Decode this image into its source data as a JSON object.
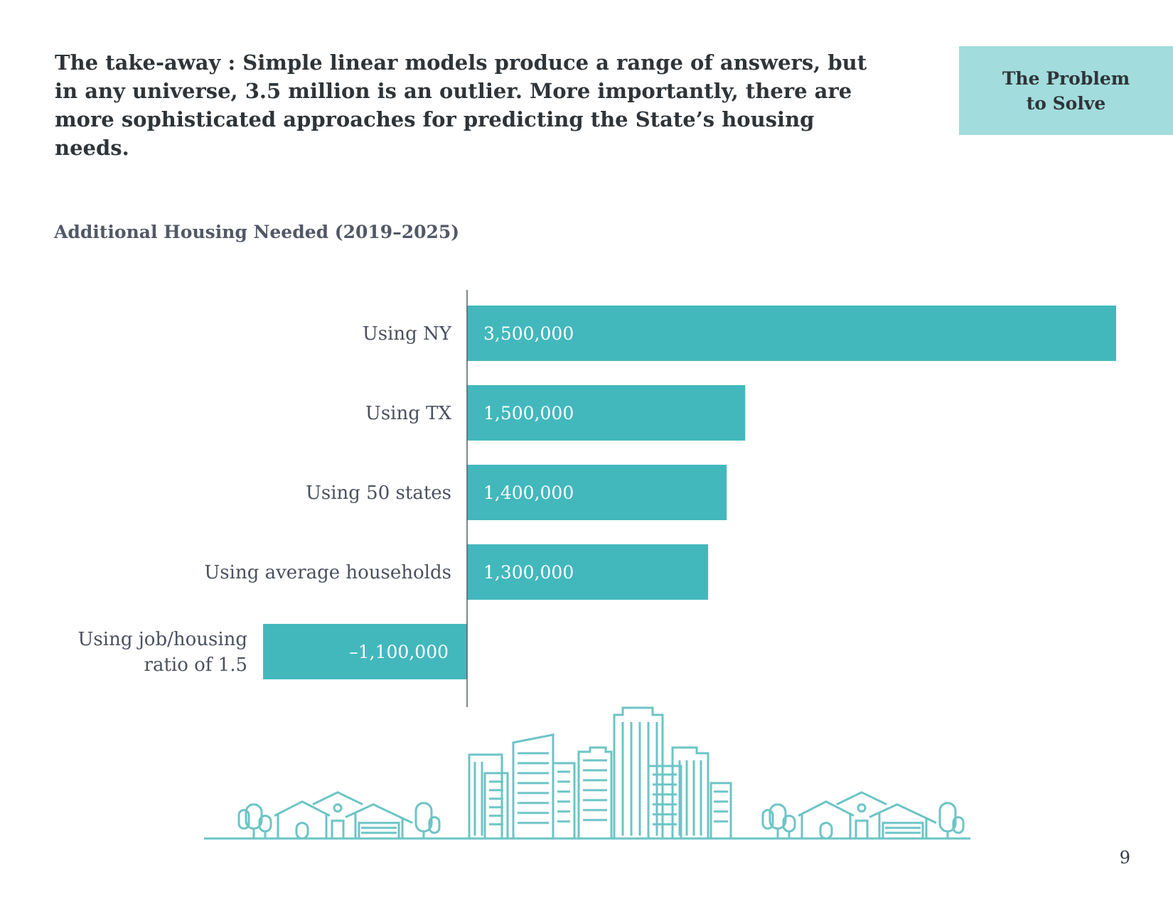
{
  "slide": {
    "takeaway": "The take-away : Simple linear models produce a range of answers, but in any universe, 3.5 million is an outlier. More importantly, there are more sophisticated approaches for predicting the State’s housing needs.",
    "section_label": "The Problem to Solve",
    "page_number": "9"
  },
  "colors": {
    "bar": "#42b8bd",
    "axis": "#555b66",
    "label_text": "#4a5060",
    "bar_text": "#ffffff",
    "section_bg": "#a2dcdc",
    "illustration": "#6cc4c6"
  },
  "chart_data": {
    "type": "bar",
    "orientation": "horizontal",
    "title": "Additional Housing Needed (2019–2025)",
    "categories": [
      [
        "Using NY"
      ],
      [
        "Using TX"
      ],
      [
        "Using 50 states"
      ],
      [
        "Using average households"
      ],
      [
        "Using job/housing",
        "ratio of 1.5"
      ]
    ],
    "values": [
      3500000,
      1500000,
      1400000,
      1300000,
      -1100000
    ],
    "value_labels": [
      "3,500,000",
      "1,500,000",
      "1,400,000",
      "1,300,000",
      "–1,100,000"
    ],
    "xlim": [
      -1100000,
      3500000
    ],
    "grid": false,
    "legend": "none"
  },
  "illustration": {
    "icon": "city-skyline-with-houses-and-trees"
  }
}
